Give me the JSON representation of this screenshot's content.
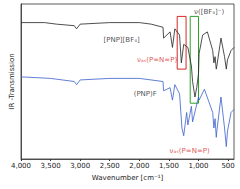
{
  "chart_data": {
    "type": "line",
    "x_label": "Wavenumber [cm⁻¹]",
    "y_label": "IR -Transmission",
    "xlim": [
      4000,
      400
    ],
    "xticks": [
      4000,
      3500,
      3000,
      2500,
      2000,
      1500,
      1000,
      500
    ],
    "ylim": [
      0,
      100
    ],
    "tick_labels": "x",
    "grid": false,
    "series": [
      {
        "name": "[PNP][BF₄]",
        "color": "#222222",
        "x": [
          4000,
          3600,
          3400,
          3100,
          3060,
          3000,
          2500,
          2000,
          1800,
          1600,
          1590,
          1480,
          1440,
          1400,
          1320,
          1290,
          1250,
          1180,
          1120,
          1100,
          1060,
          1030,
          1000,
          990,
          930,
          850,
          760,
          740,
          720,
          700,
          690,
          620,
          560,
          530,
          510,
          450,
          400
        ],
        "values": [
          88,
          88,
          87,
          86,
          84,
          87,
          88,
          88,
          87,
          85,
          78,
          82,
          72,
          84,
          80,
          62,
          74,
          72,
          60,
          50,
          40,
          46,
          55,
          68,
          80,
          82,
          70,
          62,
          66,
          58,
          60,
          78,
          66,
          58,
          64,
          70,
          72
        ]
      },
      {
        "name": "(PNP)F",
        "color": "#3a5fcd",
        "x": [
          4000,
          3500,
          3100,
          3060,
          3000,
          2500,
          2000,
          1600,
          1590,
          1480,
          1440,
          1400,
          1320,
          1280,
          1250,
          1200,
          1180,
          1120,
          1100,
          1000,
          990,
          900,
          760,
          740,
          720,
          700,
          690,
          620,
          560,
          530,
          510,
          450,
          400
        ],
        "values": [
          53,
          52,
          50,
          48,
          51,
          52,
          52,
          50,
          44,
          46,
          38,
          48,
          42,
          20,
          15,
          30,
          22,
          34,
          24,
          40,
          38,
          45,
          30,
          20,
          26,
          14,
          18,
          40,
          20,
          8,
          18,
          30,
          32
        ]
      }
    ],
    "annotations": [
      {
        "text": "[PNP][BF₄]",
        "x": 2300,
        "y": 77,
        "color": "#222222"
      },
      {
        "text": "(PNP)F",
        "x": 1900,
        "y": 42,
        "color": "#222222"
      },
      {
        "text": "ν([BF₄]⁻)",
        "x": 820,
        "y": 95,
        "color": "#222222"
      },
      {
        "text": "νₐₛ(P=N=P)",
        "x": 1700,
        "y": 64,
        "color": "#d62728"
      },
      {
        "text": "νₐₛ(P=N=P)",
        "x": 1150,
        "y": 5,
        "color": "#d62728"
      }
    ],
    "highlights": [
      {
        "x": [
          1360,
          1210
        ],
        "y": [
          58,
          92
        ],
        "color": "#d62728"
      },
      {
        "x": [
          1140,
          1000
        ],
        "y": [
          36,
          92
        ],
        "color": "#2ca02c"
      }
    ]
  }
}
